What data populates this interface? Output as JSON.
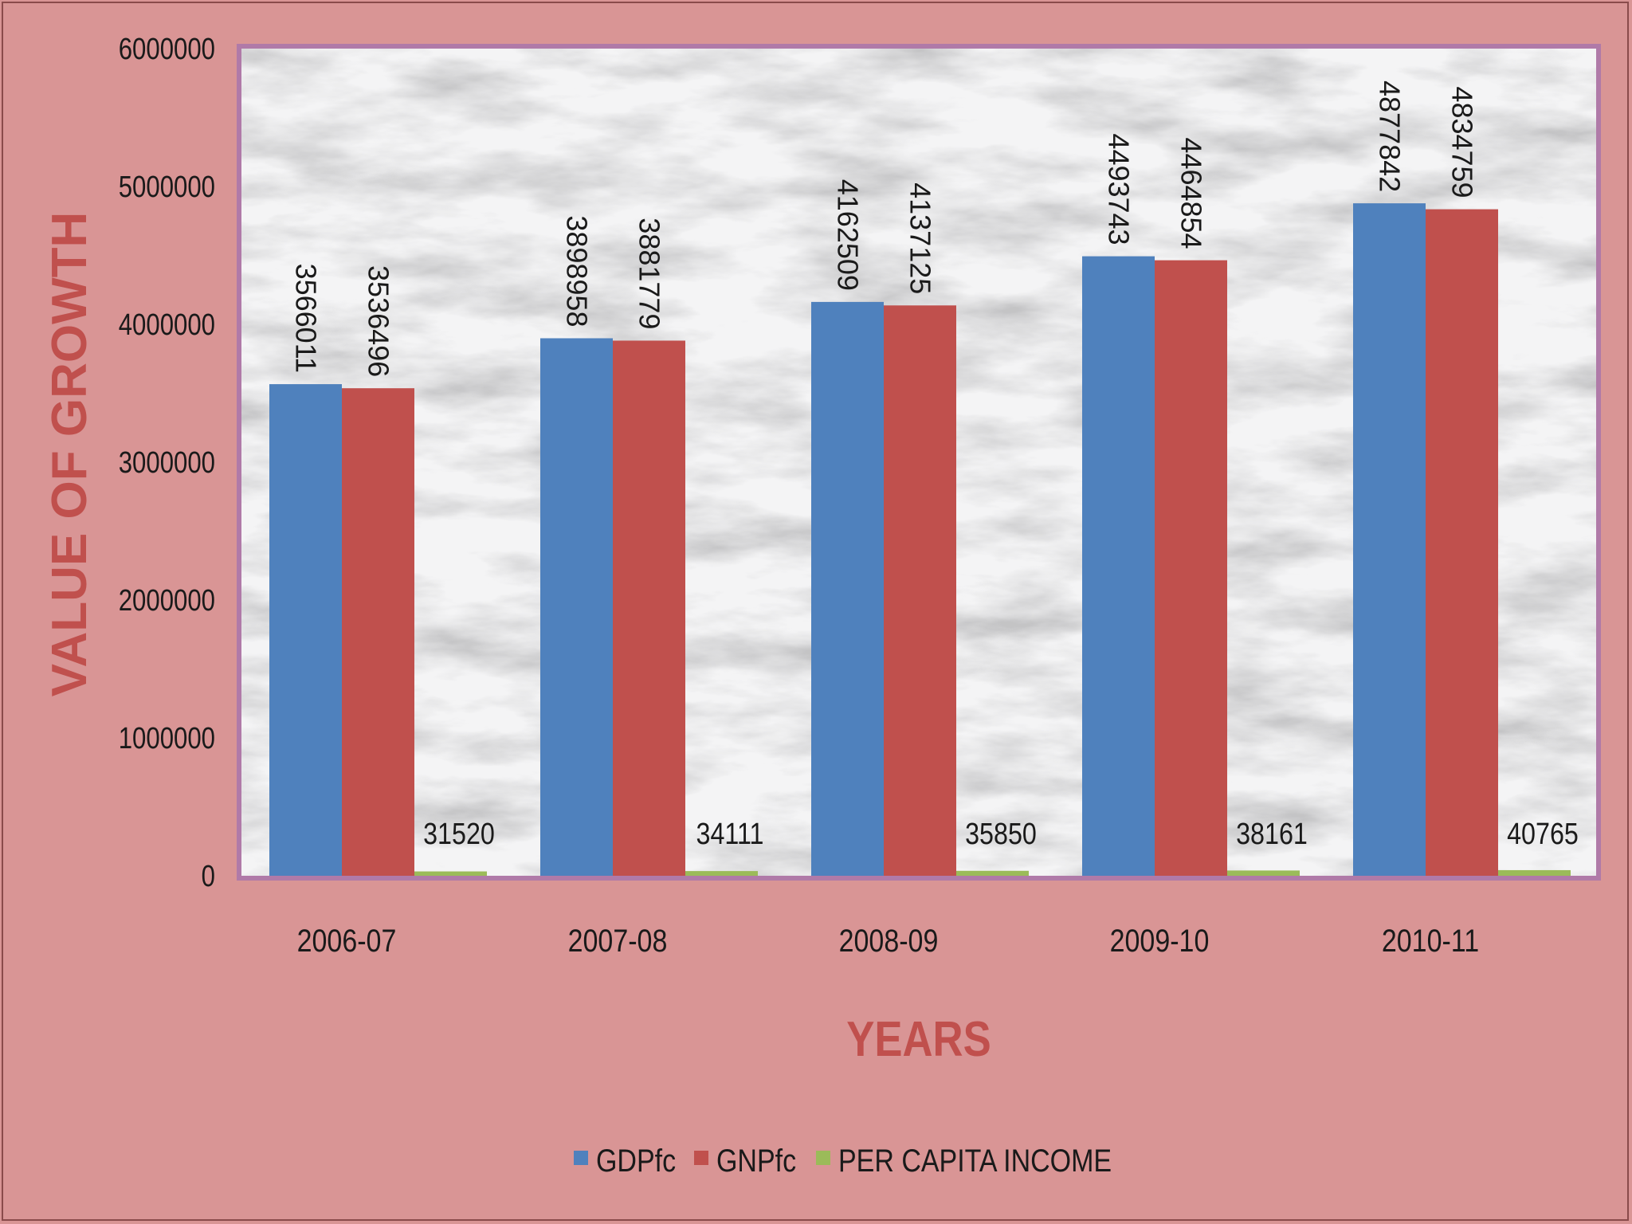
{
  "chart_data": {
    "type": "bar",
    "title": "",
    "xlabel": "YEARS",
    "ylabel": "VALUE OF GROWTH",
    "ylim": [
      0,
      6000000
    ],
    "yticks": [
      0,
      1000000,
      2000000,
      3000000,
      4000000,
      5000000,
      6000000
    ],
    "categories": [
      "2006-07",
      "2007-08",
      "2008-09",
      "2009-10",
      "2010-11"
    ],
    "series": [
      {
        "name": "GDPfc",
        "color": "#4f81bd",
        "values": [
          3566011,
          3898958,
          4162509,
          4493743,
          4877842
        ]
      },
      {
        "name": "GNPfc",
        "color": "#c0504d",
        "values": [
          3536496,
          3881779,
          4137125,
          4464854,
          4834759
        ]
      },
      {
        "name": "PER CAPITA INCOME",
        "color": "#9bbb59",
        "values": [
          31520,
          34111,
          35850,
          38161,
          40765
        ]
      }
    ],
    "legend_position": "bottom",
    "grid": false,
    "colors": {
      "background": "#d99595",
      "plot_border": "#b07aa8",
      "axis_title": "#c0504d"
    }
  }
}
